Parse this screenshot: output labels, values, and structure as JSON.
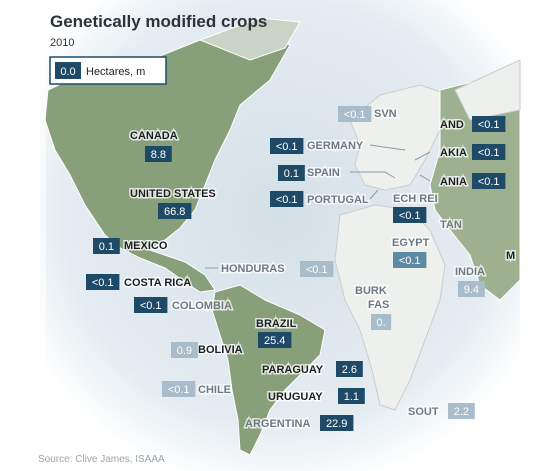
{
  "header": {
    "title": "Genetically modified crops",
    "subtitle": "2010"
  },
  "legend": {
    "value": "0.0",
    "label": "Hectares, m"
  },
  "labels": [
    {
      "name": "CANADA",
      "value": 8.8
    },
    {
      "name": "UNITED STATES",
      "value": 66.8
    },
    {
      "name": "MEXICO",
      "value": 0.1
    },
    {
      "name": "COSTA RICA",
      "value": "<0.1"
    },
    {
      "name": "COLOMBIA",
      "value": "<0.1"
    },
    {
      "name": "HONDURAS",
      "value": "<0.1"
    },
    {
      "name": "BRAZIL",
      "value": 25.4
    },
    {
      "name": "BOLIVIA",
      "value": 0.9
    },
    {
      "name": "CHILE",
      "value": "<0.1"
    },
    {
      "name": "PARAGUAY",
      "value": 2.6
    },
    {
      "name": "URUGUAY",
      "value": 1.1
    },
    {
      "name": "ARGENTINA",
      "value": 22.9
    },
    {
      "name": "SVN",
      "value": "<0.1"
    },
    {
      "name": "GERMANY",
      "value": "<0.1"
    },
    {
      "name": "SPAIN",
      "value": 0.1
    },
    {
      "name": "PORTUGAL",
      "value": "<0.1"
    },
    {
      "name": "AND",
      "value": "<0.1"
    },
    {
      "name": "AKIA",
      "value": "<0.1"
    },
    {
      "name": "ANIA",
      "value": "<0.1"
    },
    {
      "name": "ECH REI",
      "value": "<0.1"
    },
    {
      "name": "EGYPT",
      "value": "<0.1"
    },
    {
      "name": "TAN"
    },
    {
      "name": "INDIA",
      "value": 9.4
    },
    {
      "name": "BURK",
      "name_line2": "FAS",
      "value": "0."
    },
    {
      "name": "SOUT",
      "value": 2.2
    },
    {
      "name": "M"
    }
  ],
  "source": "Source: Clive James, ISAAA"
}
